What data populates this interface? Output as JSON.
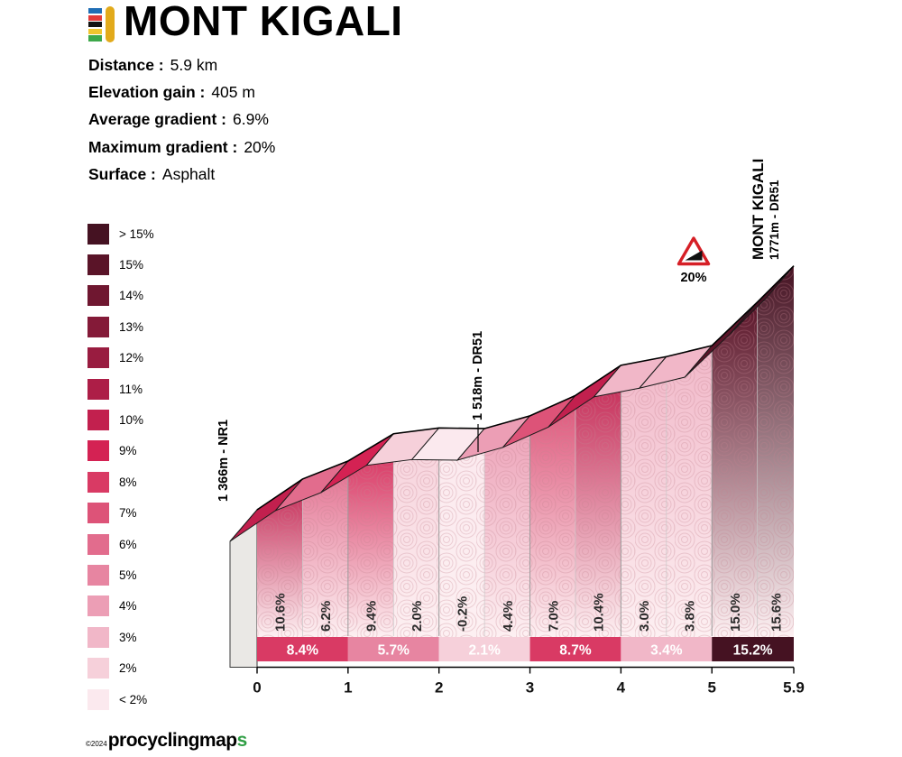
{
  "title": "MONT KIGALI",
  "header": {
    "icon_stripes": [
      "#1f6eb5",
      "#e23a3a",
      "#121212",
      "#f0c52e",
      "#3da84a"
    ],
    "icon_bar_color": "#e2aa1b"
  },
  "stats": [
    {
      "label": "Distance :",
      "value": "5.9 km"
    },
    {
      "label": "Elevation gain :",
      "value": "405 m"
    },
    {
      "label": "Average gradient :",
      "value": "6.9%"
    },
    {
      "label": "Maximum gradient :",
      "value": "20%"
    },
    {
      "label": "Surface :",
      "value": "Asphalt"
    }
  ],
  "footer": {
    "copyright": "©2024",
    "brand_main": "procyclingmap",
    "brand_accent": "s",
    "accent_color": "#2f9e44"
  },
  "chart_data": {
    "type": "area",
    "title": "Mont Kigali climb profile",
    "x_unit": "km",
    "x_max": 5.9,
    "x_ticks": [
      0,
      1,
      2,
      3,
      4,
      5,
      5.9
    ],
    "x_tick_labels": [
      "0",
      "1",
      "2",
      "3",
      "4",
      "5",
      "5.9"
    ],
    "start_elevation_m": 1366,
    "summit_elevation_m": 1771,
    "elevation_gain_m": 405,
    "segments": [
      {
        "from_km": 0.0,
        "to_km": 0.5,
        "gradient_pct": 10.6,
        "label": "10.6%"
      },
      {
        "from_km": 0.5,
        "to_km": 1.0,
        "gradient_pct": 6.2,
        "label": "6.2%"
      },
      {
        "from_km": 1.0,
        "to_km": 1.5,
        "gradient_pct": 9.4,
        "label": "9.4%"
      },
      {
        "from_km": 1.5,
        "to_km": 2.0,
        "gradient_pct": 2.0,
        "label": "2.0%"
      },
      {
        "from_km": 2.0,
        "to_km": 2.5,
        "gradient_pct": -0.2,
        "label": "-0.2%"
      },
      {
        "from_km": 2.5,
        "to_km": 3.0,
        "gradient_pct": 4.4,
        "label": "4.4%"
      },
      {
        "from_km": 3.0,
        "to_km": 3.5,
        "gradient_pct": 7.0,
        "label": "7.0%"
      },
      {
        "from_km": 3.5,
        "to_km": 4.0,
        "gradient_pct": 10.4,
        "label": "10.4%"
      },
      {
        "from_km": 4.0,
        "to_km": 4.5,
        "gradient_pct": 3.0,
        "label": "3.0%"
      },
      {
        "from_km": 4.5,
        "to_km": 5.0,
        "gradient_pct": 3.8,
        "label": "3.8%"
      },
      {
        "from_km": 5.0,
        "to_km": 5.5,
        "gradient_pct": 15.0,
        "label": "15.0%"
      },
      {
        "from_km": 5.5,
        "to_km": 5.9,
        "gradient_pct": 15.6,
        "label": "15.6%"
      }
    ],
    "km_gradients": [
      {
        "from_km": 0,
        "to_km": 1,
        "gradient_pct": 8.4,
        "label": "8.4%"
      },
      {
        "from_km": 1,
        "to_km": 2,
        "gradient_pct": 5.7,
        "label": "5.7%"
      },
      {
        "from_km": 2,
        "to_km": 3,
        "gradient_pct": 2.1,
        "label": "2.1%"
      },
      {
        "from_km": 3,
        "to_km": 4,
        "gradient_pct": 8.7,
        "label": "8.7%"
      },
      {
        "from_km": 4,
        "to_km": 5,
        "gradient_pct": 3.4,
        "label": "3.4%"
      },
      {
        "from_km": 5,
        "to_km": 5.9,
        "gradient_pct": 15.2,
        "label": "15.2%"
      }
    ],
    "legend": [
      {
        "label": "> 15%",
        "color": "#451222"
      },
      {
        "label": "15%",
        "color": "#5a1428"
      },
      {
        "label": "14%",
        "color": "#6f1730"
      },
      {
        "label": "13%",
        "color": "#841a38"
      },
      {
        "label": "12%",
        "color": "#991c40"
      },
      {
        "label": "11%",
        "color": "#ad1e47"
      },
      {
        "label": "10%",
        "color": "#c2204e"
      },
      {
        "label": "9%",
        "color": "#d42253"
      },
      {
        "label": "8%",
        "color": "#d93a64"
      },
      {
        "label": "7%",
        "color": "#dd5378"
      },
      {
        "label": "6%",
        "color": "#e26c8d"
      },
      {
        "label": "5%",
        "color": "#e785a1"
      },
      {
        "label": "4%",
        "color": "#ec9eb5"
      },
      {
        "label": "3%",
        "color": "#f1b7c8"
      },
      {
        "label": "2%",
        "color": "#f6d0da"
      },
      {
        "label": "< 2%",
        "color": "#fbe9ee"
      }
    ],
    "annotations": {
      "start": "1 366m - NR1",
      "mid": "1 518m - DR51",
      "summit_name": "MONT KIGALI",
      "summit_detail": "1771m - DR51",
      "max_gradient_sign": "20%"
    }
  }
}
